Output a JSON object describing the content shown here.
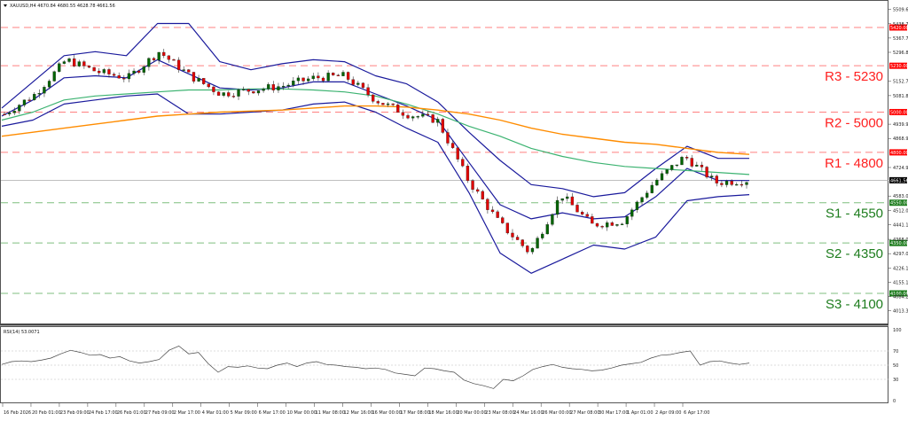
{
  "window": {
    "symbol_header": "XAUUSD,H4  4670.84 4680.55 4628.78 4661.56",
    "rsi_header": "RSI(14) 53.0071"
  },
  "colors": {
    "bull": "#006400",
    "bear": "#e00000",
    "bollinger": "#1a1a9c",
    "ma_green": "#3cb371",
    "ma_orange": "#ff8c00",
    "resistance": "#ff0000",
    "support": "#1e7d1e",
    "price_line": "#999999"
  },
  "price_axis": {
    "top_value": 5509.65,
    "bottom_value": 4013.35,
    "ticks": [
      "5509.65",
      "5438.70",
      "5367.75",
      "5296.80",
      "5152.75",
      "5081.80",
      "4939.90",
      "4868.95",
      "4724.90",
      "4583.00",
      "4512.05",
      "4441.10",
      "4368.00",
      "4297.05",
      "4226.10",
      "4155.15",
      "4084.20",
      "4013.35"
    ],
    "current_price_tag": "4661.56"
  },
  "levels": [
    {
      "name": "R3",
      "value": 5230,
      "label": "R3 - 5230",
      "tag": "5230.00",
      "type": "resistance"
    },
    {
      "name": "R2",
      "value": 5000,
      "label": "R2 - 5000",
      "tag": "5000.00",
      "type": "resistance"
    },
    {
      "name": "R1",
      "value": 4800,
      "label": "R1 - 4800",
      "tag": "4800.00",
      "type": "resistance"
    },
    {
      "name": "S1",
      "value": 4550,
      "label": "S1 - 4550",
      "tag": "4550.00",
      "type": "support"
    },
    {
      "name": "S2",
      "value": 4350,
      "label": "S2 - 4350",
      "tag": "4350.00",
      "type": "support"
    },
    {
      "name": "S3",
      "value": 4100,
      "label": "S3 - 4100",
      "tag": "4100.00",
      "type": "support"
    },
    {
      "name": "top",
      "value": 5420,
      "label": "",
      "tag": "5420.00",
      "type": "resistance"
    }
  ],
  "rsi_axis": {
    "ticks": [
      "100",
      "70",
      "50",
      "30",
      "0"
    ]
  },
  "time_axis": {
    "labels": [
      "16 Feb 2026",
      "20 Feb 01:00",
      "23 Feb 09:00",
      "24 Feb 17:00",
      "26 Feb 01:00",
      "27 Feb 09:00",
      "2 Mar 17:00",
      "4 Mar 01:00",
      "5 Mar 09:00",
      "6 Mar 17:00",
      "10 Mar 00:00",
      "11 Mar 08:00",
      "12 Mar 16:00",
      "16 Mar 00:00",
      "17 Mar 08:00",
      "18 Mar 16:00",
      "20 Mar 00:00",
      "23 Mar 08:00",
      "24 Mar 16:00",
      "26 Mar 00:00",
      "27 Mar 08:00",
      "30 Mar 17:00",
      "1 Apr 01:00",
      "2 Apr 09:00",
      "6 Apr 17:00"
    ]
  },
  "chart_data": {
    "type": "candlestick",
    "title": "XAUUSD,H4",
    "ohlc_last": {
      "open": 4670.84,
      "high": 4680.55,
      "low": 4628.78,
      "close": 4661.56
    },
    "ylim": [
      4013.35,
      5509.65
    ],
    "x_categories": [
      "16 Feb 2026",
      "20 Feb 01:00",
      "23 Feb 09:00",
      "24 Feb 17:00",
      "26 Feb 01:00",
      "27 Feb 09:00",
      "2 Mar 17:00",
      "4 Mar 01:00",
      "5 Mar 09:00",
      "6 Mar 17:00",
      "10 Mar 00:00",
      "11 Mar 08:00",
      "12 Mar 16:00",
      "16 Mar 00:00",
      "17 Mar 08:00",
      "18 Mar 16:00",
      "20 Mar 00:00",
      "23 Mar 08:00",
      "24 Mar 16:00",
      "26 Mar 00:00",
      "27 Mar 08:00",
      "30 Mar 17:00",
      "1 Apr 01:00",
      "2 Apr 09:00",
      "6 Apr 17:00"
    ],
    "approx_close_by_label": [
      4990,
      5090,
      5260,
      5200,
      5170,
      5300,
      5180,
      5090,
      5110,
      5130,
      5170,
      5180,
      5060,
      4990,
      4960,
      4660,
      4450,
      4300,
      4590,
      4440,
      4460,
      4650,
      4780,
      4650,
      4661
    ],
    "series": [
      {
        "name": "Price (candles)",
        "values": [
          4990,
          5090,
          5260,
          5200,
          5170,
          5300,
          5180,
          5090,
          5110,
          5130,
          5170,
          5180,
          5060,
          4990,
          4960,
          4660,
          4450,
          4300,
          4590,
          4440,
          4460,
          4650,
          4780,
          4650,
          4661
        ]
      },
      {
        "name": "Bollinger Upper",
        "values": [
          5020,
          5150,
          5280,
          5300,
          5280,
          5440,
          5440,
          5250,
          5210,
          5240,
          5260,
          5250,
          5180,
          5140,
          5050,
          4900,
          4760,
          4640,
          4620,
          4580,
          4600,
          4720,
          4830,
          4770,
          4770
        ]
      },
      {
        "name": "Bollinger Middle",
        "values": [
          4980,
          5060,
          5170,
          5180,
          5170,
          5260,
          5190,
          5120,
          5110,
          5120,
          5150,
          5150,
          5090,
          5030,
          4960,
          4750,
          4540,
          4470,
          4500,
          4470,
          4480,
          4580,
          4720,
          4660,
          4660
        ]
      },
      {
        "name": "Bollinger Lower",
        "values": [
          4930,
          4960,
          5040,
          5060,
          5080,
          5090,
          4990,
          4990,
          5000,
          5010,
          5040,
          5050,
          5000,
          4920,
          4850,
          4600,
          4300,
          4200,
          4270,
          4340,
          4320,
          4380,
          4560,
          4580,
          4590
        ]
      },
      {
        "name": "MA Green",
        "values": [
          4960,
          5000,
          5060,
          5080,
          5090,
          5100,
          5110,
          5110,
          5115,
          5115,
          5110,
          5100,
          5080,
          5040,
          4990,
          4930,
          4880,
          4820,
          4780,
          4750,
          4730,
          4720,
          4710,
          4700,
          4690
        ]
      },
      {
        "name": "MA Orange",
        "values": [
          4880,
          4900,
          4920,
          4940,
          4960,
          4980,
          4990,
          5000,
          5005,
          5010,
          5020,
          5030,
          5030,
          5025,
          5010,
          4990,
          4960,
          4920,
          4890,
          4870,
          4850,
          4840,
          4820,
          4800,
          4790
        ]
      }
    ],
    "levels": {
      "R3": 5230,
      "R2": 5000,
      "R1": 4800,
      "S1": 4550,
      "S2": 4350,
      "S3": 4100
    },
    "rsi": {
      "name": "RSI(14)",
      "last": 53.0071,
      "ylim": [
        0,
        100
      ],
      "levels": [
        70,
        50,
        30
      ],
      "values": [
        51,
        55,
        56,
        55,
        57,
        60,
        66,
        71,
        68,
        64,
        65,
        60,
        62,
        56,
        53,
        55,
        58,
        71,
        77,
        66,
        68,
        52,
        40,
        48,
        47,
        49,
        46,
        45,
        50,
        53,
        48,
        53,
        55,
        51,
        50,
        48,
        47,
        45,
        46,
        44,
        39,
        37,
        35,
        46,
        45,
        42,
        40,
        29,
        24,
        21,
        17,
        30,
        28,
        35,
        44,
        48,
        51,
        47,
        45,
        44,
        42,
        43,
        46,
        50,
        52,
        54,
        60,
        64,
        65,
        68,
        70,
        50,
        55,
        56,
        53,
        51,
        53
      ]
    },
    "legend": [],
    "grid": false
  }
}
